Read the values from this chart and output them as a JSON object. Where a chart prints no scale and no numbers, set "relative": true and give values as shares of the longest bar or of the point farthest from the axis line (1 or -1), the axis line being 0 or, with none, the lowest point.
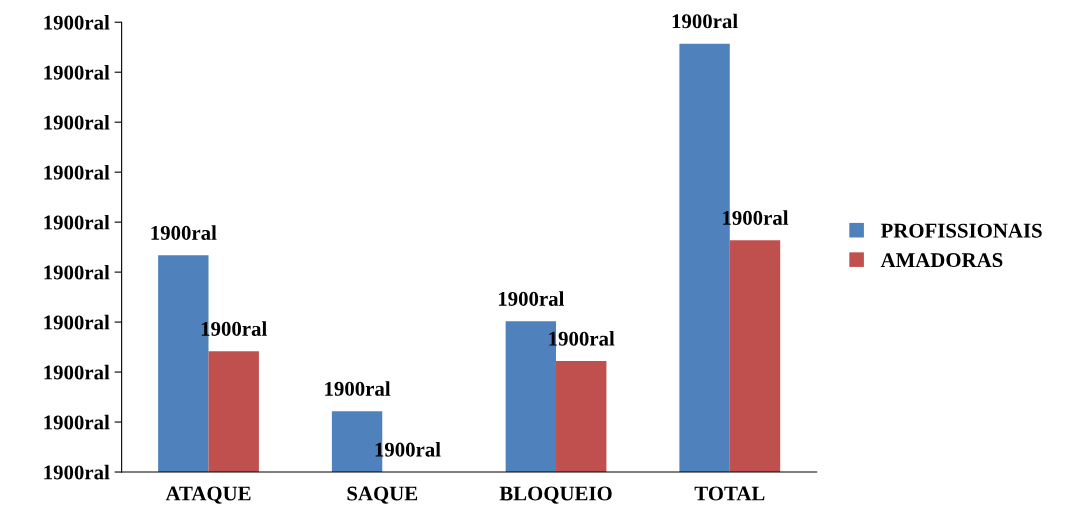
{
  "chart_data": {
    "type": "bar",
    "relative": true,
    "categories": [
      "ATAQUE",
      "SAQUE",
      "BLOQUEIO",
      "TOTAL"
    ],
    "series": [
      {
        "name": "PROFISSIONAIS",
        "color": "#4f81bd",
        "values": [
          0.506,
          0.142,
          0.352,
          1
        ]
      },
      {
        "name": "AMADORAS",
        "color": "#c0504d",
        "values": [
          0.282,
          0,
          0.259,
          0.541
        ]
      }
    ],
    "annotations": [
      "1900ral",
      "1900ral",
      "1900ral",
      "1900ral",
      "1900ral",
      "1900ral",
      "1900ral",
      "1900ral",
      "1900ral",
      "1900ral",
      {
        "text": "1900ral",
        "x": "ATAQUE",
        "y": 0.506
      },
      {
        "text": "1900ral",
        "x": "SAQUE",
        "y": 0.142
      },
      {
        "text": "1900ral",
        "x": "BLOQUEIO",
        "y": 0.352
      },
      {
        "text": "1900ral",
        "x": "TOTAL",
        "y": 1
      },
      {
        "text": "1900ral",
        "x": "ATAQUE",
        "y": 0.282
      },
      {
        "text": "1900ral",
        "x": "SAQUE",
        "y": 0
      },
      {
        "text": "1900ral",
        "x": "BLOQUEIO",
        "y": 0.259
      },
      {
        "text": "1900ral",
        "x": "TOTAL",
        "y": 0.541
      }
    ],
    "grid": false,
    "legend": "right"
  }
}
